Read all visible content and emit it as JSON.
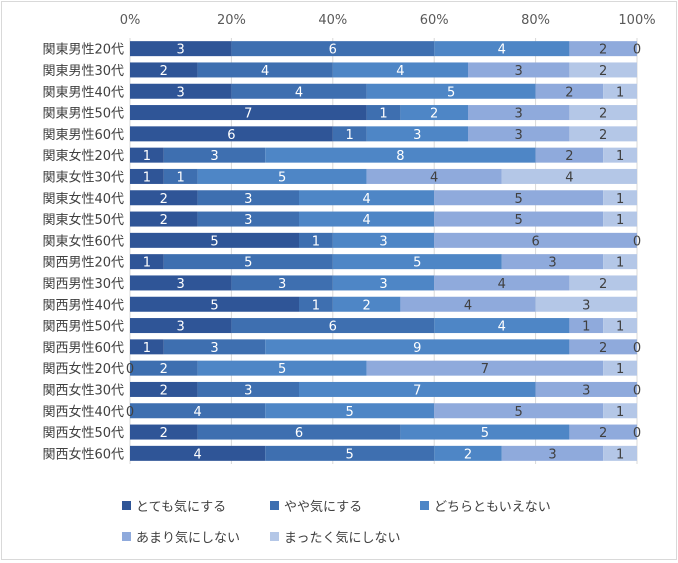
{
  "chart_data": {
    "type": "bar",
    "orientation": "horizontal",
    "stacked": true,
    "percent_stacked": true,
    "x_ticks": [
      "0%",
      "20%",
      "40%",
      "60%",
      "80%",
      "100%"
    ],
    "xlim": [
      0,
      100
    ],
    "grid": true,
    "legend_position": "bottom",
    "categories": [
      "関東男性20代",
      "関東男性30代",
      "関東男性40代",
      "関東男性50代",
      "関東男性60代",
      "関東女性20代",
      "関東女性30代",
      "関東女性40代",
      "関東女性50代",
      "関東女性60代",
      "関西男性20代",
      "関西男性30代",
      "関西男性40代",
      "関西男性50代",
      "関西男性60代",
      "関西女性20代",
      "関西女性30代",
      "関西女性40代",
      "関西女性50代",
      "関西女性60代"
    ],
    "series": [
      {
        "name": "とても気にする",
        "color": "#2f5597",
        "values": [
          3,
          2,
          3,
          7,
          6,
          1,
          1,
          2,
          2,
          5,
          1,
          3,
          5,
          3,
          1,
          0,
          2,
          0,
          2,
          4
        ]
      },
      {
        "name": "やや気にする",
        "color": "#3e6fb0",
        "values": [
          6,
          4,
          4,
          1,
          1,
          3,
          1,
          3,
          3,
          1,
          5,
          3,
          1,
          6,
          3,
          2,
          3,
          4,
          6,
          5
        ]
      },
      {
        "name": "どちらともいえない",
        "color": "#4e86c6",
        "values": [
          4,
          4,
          5,
          2,
          3,
          8,
          5,
          4,
          4,
          3,
          5,
          3,
          2,
          4,
          9,
          5,
          7,
          5,
          5,
          2
        ]
      },
      {
        "name": "あまり気にしない",
        "color": "#8faadc",
        "values": [
          2,
          3,
          2,
          3,
          3,
          2,
          4,
          5,
          5,
          6,
          3,
          4,
          4,
          1,
          2,
          7,
          3,
          5,
          2,
          3
        ]
      },
      {
        "name": "まったく気にしない",
        "color": "#b4c7e7",
        "values": [
          0,
          2,
          1,
          2,
          2,
          1,
          4,
          1,
          1,
          0,
          1,
          2,
          3,
          1,
          0,
          1,
          0,
          1,
          0,
          1
        ]
      }
    ]
  }
}
